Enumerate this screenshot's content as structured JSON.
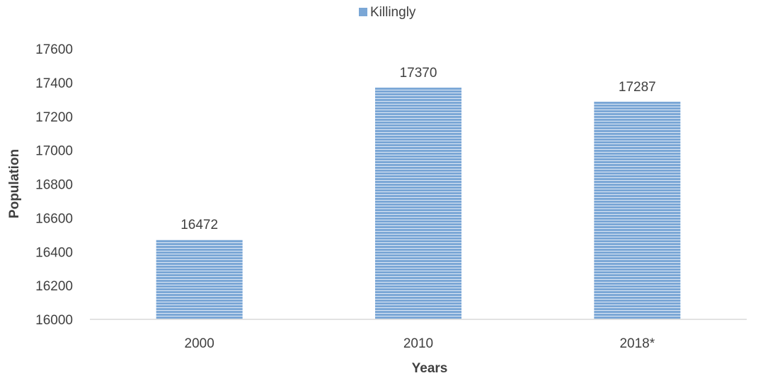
{
  "chart_data": {
    "type": "bar",
    "categories": [
      "2000",
      "2010",
      "2018*"
    ],
    "series": [
      {
        "name": "Killingly",
        "values": [
          16472,
          17370,
          17287
        ]
      }
    ],
    "data_labels": [
      "16472",
      "17370",
      "17287"
    ],
    "xlabel": "Years",
    "ylabel": "Population",
    "ylim": [
      16000,
      17600
    ],
    "yticks": [
      16000,
      16200,
      16400,
      16600,
      16800,
      17000,
      17200,
      17400,
      17600
    ],
    "ytick_labels": [
      "16000",
      "16200",
      "16400",
      "16600",
      "16800",
      "17000",
      "17200",
      "17400",
      "17600"
    ],
    "grid": false,
    "legend_position": "top-center",
    "colors": {
      "bar": "#7ba7d6",
      "bar_stripe": "#ffffff",
      "axis": "#d9d9d9",
      "text": "#404040"
    }
  }
}
